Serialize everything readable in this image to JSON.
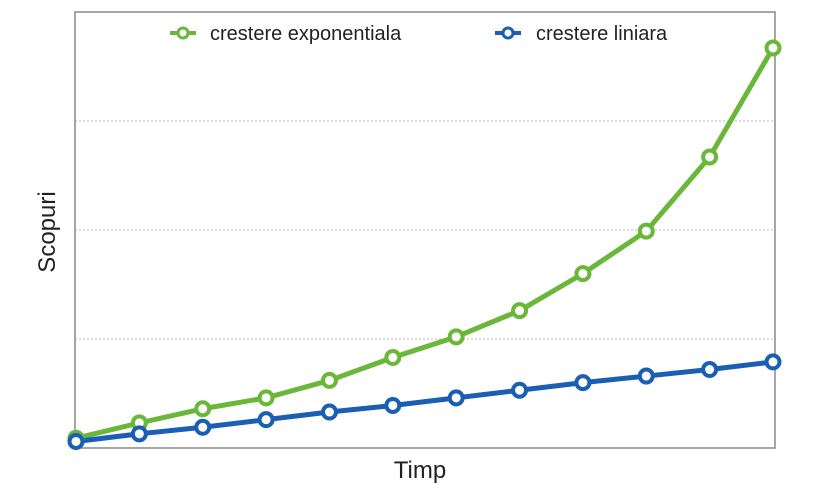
{
  "chart_data": {
    "type": "line",
    "title": "",
    "xlabel": "Timp",
    "ylabel": "Scopuri",
    "x": [
      1,
      2,
      3,
      4,
      5,
      6,
      7,
      8,
      9,
      10,
      11,
      12
    ],
    "ylim": [
      0,
      4
    ],
    "grid": {
      "y": true,
      "x": false,
      "style": "dotted",
      "y_lines": [
        1,
        2,
        3
      ]
    },
    "tick_labels_shown": false,
    "legend": "top",
    "series": [
      {
        "name": "crestere exponentiala",
        "color": "#6ab73a",
        "values": [
          0.09,
          0.23,
          0.36,
          0.46,
          0.62,
          0.83,
          1.02,
          1.26,
          1.6,
          1.99,
          2.67,
          3.67
        ]
      },
      {
        "name": "crestere liniara",
        "color": "#1a5fb4",
        "values": [
          0.06,
          0.13,
          0.19,
          0.26,
          0.33,
          0.39,
          0.46,
          0.53,
          0.6,
          0.66,
          0.72,
          0.79
        ]
      }
    ]
  }
}
